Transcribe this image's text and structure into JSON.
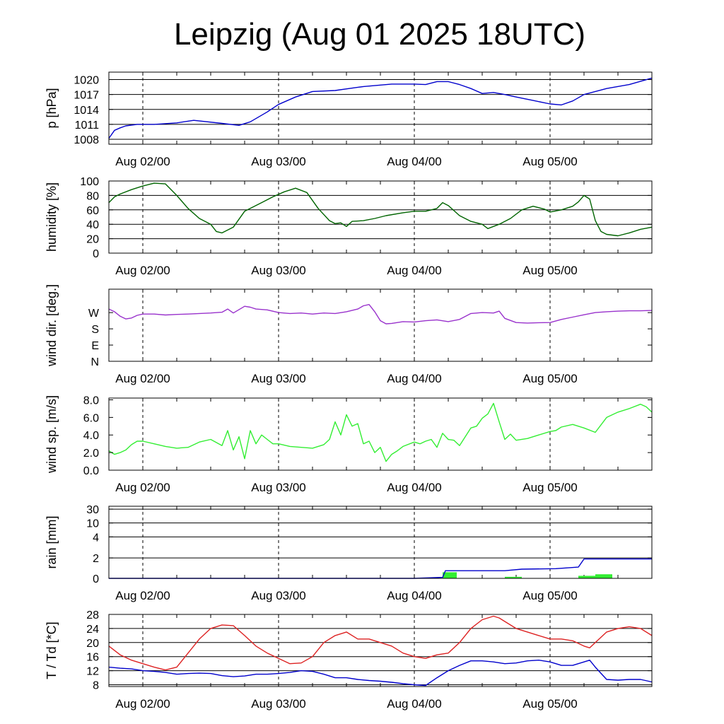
{
  "title": "Leipzig (Aug 01 2025 18UTC)",
  "chart_data": [
    {
      "type": "line",
      "ylabel": "p [hPa]",
      "ylim": [
        1007,
        1021.5
      ],
      "yticks": [
        1008,
        1011,
        1014,
        1017,
        1020
      ],
      "ytick_labels": [
        "1008",
        "1011",
        "1014",
        "1017",
        "1020"
      ],
      "grid": true,
      "xlim_hours": [
        0,
        96
      ],
      "x_tick_hours": [
        6,
        30,
        54,
        78
      ],
      "x_tick_labels": [
        "Aug 02/00",
        "Aug 03/00",
        "Aug 04/00",
        "Aug 05/00"
      ],
      "series": [
        {
          "color": "#0000cc",
          "x": [
            0,
            1,
            2,
            3,
            5,
            8,
            12,
            15,
            20,
            23,
            25,
            28,
            30,
            33,
            36,
            40,
            45,
            50,
            54,
            56,
            58,
            60,
            62,
            64,
            66,
            68,
            70,
            72,
            75,
            78,
            80,
            82,
            84,
            88,
            92,
            96
          ],
          "y": [
            1008.2,
            1009.8,
            1010.3,
            1010.7,
            1011.0,
            1011.0,
            1011.3,
            1011.8,
            1011.2,
            1010.8,
            1011.5,
            1013.5,
            1015.0,
            1016.5,
            1017.6,
            1017.8,
            1018.6,
            1019.1,
            1019.1,
            1019.0,
            1019.6,
            1019.6,
            1019.0,
            1018.2,
            1017.2,
            1017.4,
            1017.0,
            1016.5,
            1015.8,
            1015.1,
            1014.9,
            1015.7,
            1017.0,
            1018.2,
            1019.0,
            1020.3
          ]
        }
      ]
    },
    {
      "type": "line",
      "ylabel": "humidity [%]",
      "ylim": [
        0,
        100
      ],
      "yticks": [
        0,
        20,
        40,
        60,
        80,
        100
      ],
      "ytick_labels": [
        "0",
        "20",
        "40",
        "60",
        "80",
        "100"
      ],
      "grid": true,
      "xlim_hours": [
        0,
        96
      ],
      "x_tick_hours": [
        6,
        30,
        54,
        78
      ],
      "x_tick_labels": [
        "Aug 02/00",
        "Aug 03/00",
        "Aug 04/00",
        "Aug 05/00"
      ],
      "series": [
        {
          "color": "#006400",
          "x": [
            0,
            1,
            2,
            4,
            6,
            8,
            10,
            12,
            14,
            16,
            18,
            19,
            20,
            22,
            24,
            27,
            29,
            31,
            33,
            35,
            37,
            39,
            40,
            41,
            42,
            43,
            45,
            47,
            49,
            52,
            54,
            56,
            58,
            59,
            60,
            62,
            64,
            66,
            67,
            69,
            71,
            73,
            75,
            77,
            78,
            80,
            82,
            83,
            84,
            85,
            86,
            87,
            88,
            90,
            92,
            94,
            96
          ],
          "y": [
            70,
            78,
            82,
            88,
            93,
            97,
            96,
            80,
            62,
            48,
            40,
            30,
            28,
            36,
            58,
            70,
            78,
            85,
            90,
            84,
            62,
            45,
            41,
            42,
            37,
            44,
            45,
            48,
            52,
            56,
            58,
            58,
            62,
            70,
            66,
            52,
            44,
            40,
            34,
            40,
            48,
            60,
            65,
            61,
            57,
            60,
            65,
            71,
            80,
            75,
            45,
            30,
            26,
            24,
            28,
            33,
            36
          ]
        }
      ]
    },
    {
      "type": "line",
      "ylabel": "wind dir. [deg.]",
      "ylim": [
        0,
        400
      ],
      "yticks": [
        0,
        90,
        180,
        270
      ],
      "ytick_labels": [
        "N",
        "E",
        "S",
        "W"
      ],
      "grid": false,
      "xlim_hours": [
        0,
        96
      ],
      "x_tick_hours": [
        6,
        30,
        54,
        78
      ],
      "x_tick_labels": [
        "Aug 02/00",
        "Aug 03/00",
        "Aug 04/00",
        "Aug 05/00"
      ],
      "series": [
        {
          "color": "#9932cc",
          "x": [
            0,
            1,
            2,
            3,
            4,
            5,
            6,
            8,
            10,
            12,
            14,
            16,
            18,
            20,
            21,
            22,
            24,
            25,
            26,
            28,
            30,
            32,
            34,
            36,
            38,
            40,
            42,
            44,
            45,
            46,
            47,
            48,
            49,
            50,
            52,
            54,
            56,
            58,
            60,
            62,
            64,
            66,
            68,
            69,
            70,
            72,
            74,
            76,
            78,
            80,
            82,
            84,
            86,
            88,
            90,
            92,
            94,
            96
          ],
          "y": [
            290,
            275,
            250,
            235,
            240,
            255,
            262,
            262,
            257,
            260,
            262,
            265,
            268,
            272,
            290,
            268,
            305,
            300,
            290,
            285,
            270,
            265,
            268,
            262,
            268,
            265,
            275,
            290,
            308,
            315,
            275,
            225,
            208,
            210,
            220,
            218,
            225,
            230,
            220,
            232,
            265,
            270,
            268,
            278,
            238,
            215,
            212,
            214,
            215,
            232,
            245,
            258,
            270,
            275,
            278,
            280,
            280,
            282
          ]
        }
      ]
    },
    {
      "type": "line",
      "ylabel": "wind sp. [m/s]",
      "ylim": [
        0,
        8.2
      ],
      "yticks": [
        0,
        2,
        4,
        6,
        8
      ],
      "ytick_labels": [
        "0.0",
        "2.0",
        "4.0",
        "6.0",
        "8.0"
      ],
      "grid": false,
      "xlim_hours": [
        0,
        96
      ],
      "x_tick_hours": [
        6,
        30,
        54,
        78
      ],
      "x_tick_labels": [
        "Aug 02/00",
        "Aug 03/00",
        "Aug 04/00",
        "Aug 05/00"
      ],
      "series": [
        {
          "color": "#33ee33",
          "x": [
            0,
            1,
            2,
            3,
            4,
            5,
            6,
            8,
            10,
            12,
            14,
            16,
            18,
            20,
            21,
            22,
            23,
            24,
            25,
            26,
            27,
            28,
            29,
            30,
            32,
            34,
            36,
            38,
            39,
            40,
            41,
            42,
            43,
            44,
            45,
            46,
            47,
            48,
            49,
            50,
            51,
            52,
            54,
            55,
            56,
            57,
            58,
            59,
            60,
            61,
            62,
            63,
            64,
            65,
            66,
            67,
            68,
            69,
            70,
            71,
            72,
            74,
            76,
            78,
            79,
            80,
            82,
            84,
            86,
            88,
            90,
            92,
            94,
            95,
            96
          ],
          "y": [
            2.2,
            1.8,
            2.0,
            2.3,
            2.9,
            3.3,
            3.3,
            3.0,
            2.7,
            2.5,
            2.6,
            3.2,
            3.5,
            2.8,
            4.5,
            2.3,
            3.8,
            1.3,
            4.5,
            3.0,
            4.0,
            3.5,
            3.0,
            3.0,
            2.7,
            2.6,
            2.5,
            2.9,
            3.5,
            5.5,
            4.0,
            6.3,
            5.0,
            5.3,
            3.0,
            3.3,
            2.0,
            2.6,
            1.0,
            1.8,
            2.2,
            2.7,
            3.2,
            3.0,
            3.3,
            3.5,
            2.6,
            4.2,
            3.5,
            3.4,
            2.8,
            3.8,
            4.8,
            5.0,
            5.9,
            6.4,
            7.6,
            5.5,
            3.5,
            4.1,
            3.4,
            3.6,
            4.0,
            4.4,
            4.5,
            4.9,
            5.2,
            4.8,
            4.3,
            6.0,
            6.6,
            7.0,
            7.5,
            7.2,
            6.6
          ]
        }
      ]
    },
    {
      "type": "bar",
      "ylabel": "rain [mm]",
      "ylim": [
        0,
        35
      ],
      "yticks": [
        0,
        2,
        4,
        10,
        30
      ],
      "ytick_labels": [
        "0",
        "2",
        "4",
        "10",
        "30"
      ],
      "grid": true,
      "xlim_hours": [
        0,
        96
      ],
      "x_tick_hours": [
        6,
        30,
        54,
        78
      ],
      "x_tick_labels": [
        "Aug 02/00",
        "Aug 03/00",
        "Aug 04/00",
        "Aug 05/00"
      ],
      "bars": {
        "color": "#33ee33",
        "x_start": [
          59,
          70,
          83,
          86
        ],
        "x_end": [
          61.5,
          73,
          86,
          89
        ],
        "values": [
          0.6,
          0.15,
          0.25,
          0.4
        ]
      },
      "series": [
        {
          "color": "#0000cc",
          "x": [
            0,
            54,
            59,
            59.5,
            70,
            73,
            79,
            83,
            84,
            96
          ],
          "y": [
            0,
            0,
            0.1,
            0.75,
            0.75,
            0.9,
            0.95,
            1.1,
            1.9,
            1.9
          ]
        }
      ]
    },
    {
      "type": "line",
      "ylabel": "T / Td [*C]",
      "ylim": [
        7.5,
        28
      ],
      "yticks": [
        8,
        12,
        16,
        20,
        24,
        28
      ],
      "ytick_labels": [
        "8",
        "12",
        "16",
        "20",
        "24",
        "28"
      ],
      "grid": true,
      "xlim_hours": [
        0,
        96
      ],
      "x_tick_hours": [
        6,
        30,
        54,
        78
      ],
      "x_tick_labels": [
        "Aug 02/00",
        "Aug 03/00",
        "Aug 04/00",
        "Aug 05/00"
      ],
      "series": [
        {
          "color": "#dd2222",
          "x": [
            0,
            2,
            4,
            6,
            8,
            10,
            12,
            14,
            16,
            18,
            20,
            22,
            24,
            26,
            28,
            30,
            32,
            34,
            36,
            38,
            40,
            42,
            44,
            46,
            48,
            50,
            52,
            54,
            56,
            58,
            60,
            62,
            64,
            66,
            68,
            69,
            70,
            72,
            74,
            76,
            78,
            80,
            82,
            84,
            85,
            86,
            88,
            90,
            92,
            94,
            96
          ],
          "y": [
            19,
            16.5,
            15,
            14,
            13,
            12.2,
            13,
            17,
            21,
            24,
            25,
            24.8,
            22,
            19,
            17,
            15.5,
            14,
            14.2,
            16,
            20,
            22,
            23,
            21,
            21,
            20,
            19,
            17,
            16,
            15.5,
            16.5,
            17,
            20,
            24,
            26.5,
            27.5,
            27,
            26,
            24,
            23,
            22,
            21,
            21,
            20.5,
            19,
            18.5,
            20,
            23,
            24,
            24.5,
            24,
            22
          ]
        },
        {
          "color": "#0000cc",
          "x": [
            0,
            2,
            4,
            6,
            8,
            10,
            12,
            14,
            16,
            18,
            20,
            22,
            24,
            26,
            28,
            30,
            32,
            34,
            36,
            38,
            40,
            42,
            44,
            46,
            48,
            50,
            52,
            54,
            56,
            58,
            60,
            62,
            64,
            66,
            68,
            70,
            72,
            74,
            76,
            78,
            80,
            82,
            84,
            85,
            86,
            88,
            90,
            92,
            94,
            96
          ],
          "y": [
            13,
            12.7,
            12.5,
            12,
            11.8,
            11.5,
            11,
            11.2,
            11.3,
            11.2,
            10.6,
            10.3,
            10.5,
            11,
            11,
            11.2,
            11.5,
            12,
            11.8,
            11,
            10,
            10,
            9.5,
            9.2,
            9,
            8.7,
            8.3,
            8,
            7.8,
            10,
            12,
            13.5,
            14.8,
            14.8,
            14.5,
            14,
            14.2,
            14.8,
            15,
            14.5,
            13.5,
            13.5,
            14.5,
            15,
            13,
            9.5,
            9.3,
            9.5,
            9.5,
            8.8
          ]
        }
      ]
    }
  ]
}
